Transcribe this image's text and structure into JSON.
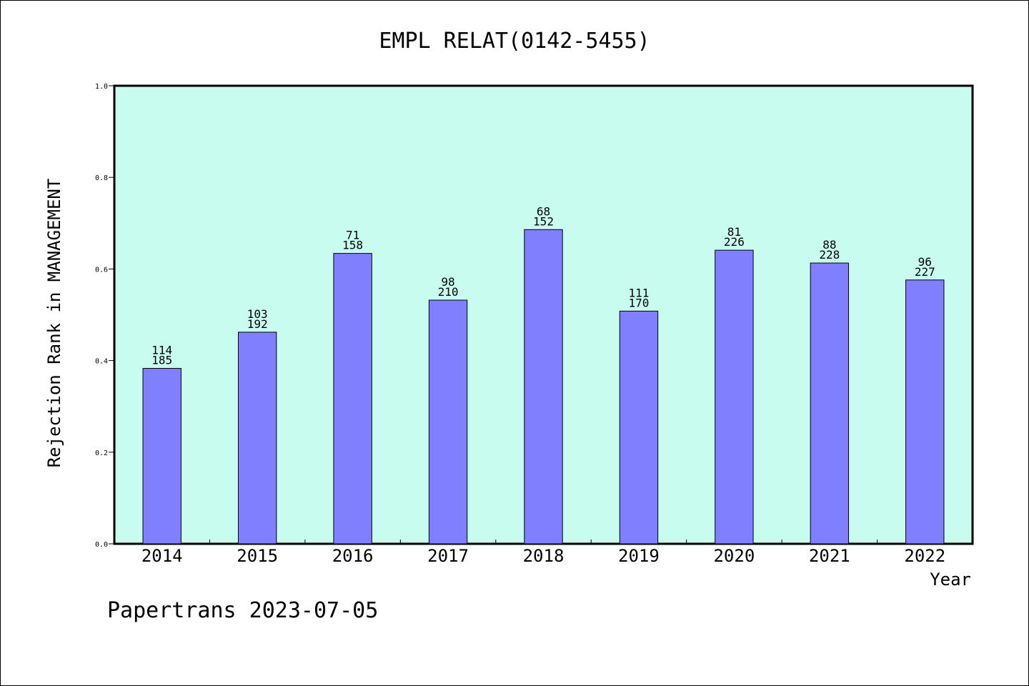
{
  "chart_data": {
    "type": "bar",
    "title": "EMPL RELAT(0142-5455)",
    "xlabel": "Year",
    "ylabel": "Rejection Rank in MANAGEMENT",
    "ylim": [
      0,
      1.0
    ],
    "yticks": [
      "0.0",
      "0.2",
      "0.4",
      "0.6",
      "0.8",
      "1.0"
    ],
    "categories": [
      "2014",
      "2015",
      "2016",
      "2017",
      "2018",
      "2019",
      "2020",
      "2021",
      "2022"
    ],
    "values": [
      0.383,
      0.462,
      0.634,
      0.532,
      0.686,
      0.508,
      0.641,
      0.613,
      0.576
    ],
    "labels_top": [
      "114",
      "103",
      "71",
      "98",
      "68",
      "111",
      "81",
      "88",
      "96"
    ],
    "labels_bottom": [
      "185",
      "192",
      "158",
      "210",
      "152",
      "170",
      "226",
      "228",
      "227"
    ],
    "grid": false,
    "colors": {
      "bar": "#8080ff",
      "plot_bg": "#c8fcee"
    }
  },
  "footer": "Papertrans 2023-07-05"
}
